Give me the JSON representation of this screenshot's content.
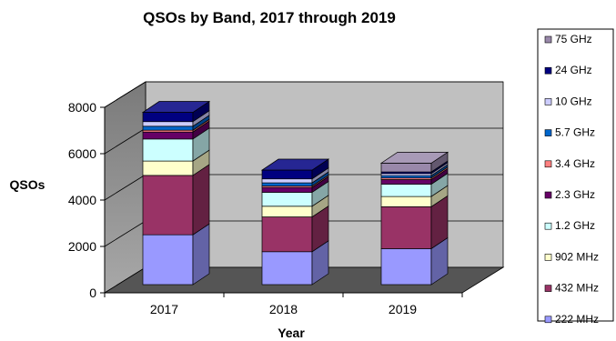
{
  "chart_data": {
    "type": "bar",
    "stacked": true,
    "three_d": true,
    "title": "QSOs by Band, 2017 through 2019",
    "xlabel": "Year",
    "ylabel": "QSOs",
    "ylim": [
      0,
      8000
    ],
    "yticks": [
      "0",
      "2000",
      "4000",
      "6000",
      "8000"
    ],
    "categories": [
      "2017",
      "2018",
      "2019"
    ],
    "grid": true,
    "legend_position": "right",
    "series": [
      {
        "name": "222 MHz",
        "color": "#9999ff",
        "values": [
          2150,
          1420,
          1550
        ]
      },
      {
        "name": "432 MHz",
        "color": "#993366",
        "values": [
          2560,
          1500,
          1810
        ]
      },
      {
        "name": "902 MHz",
        "color": "#ffffcc",
        "values": [
          620,
          460,
          440
        ]
      },
      {
        "name": "1.2 GHz",
        "color": "#ccffff",
        "values": [
          950,
          600,
          530
        ]
      },
      {
        "name": "2.3 GHz",
        "color": "#660066",
        "values": [
          300,
          210,
          200
        ]
      },
      {
        "name": "3.4 GHz",
        "color": "#ff8080",
        "values": [
          80,
          60,
          70
        ]
      },
      {
        "name": "5.7 GHz",
        "color": "#0066cc",
        "values": [
          170,
          140,
          100
        ]
      },
      {
        "name": "10 GHz",
        "color": "#ccccff",
        "values": [
          200,
          170,
          90
        ]
      },
      {
        "name": "24 GHz",
        "color": "#000080",
        "values": [
          400,
          380,
          70
        ]
      },
      {
        "name": "75 GHz",
        "color": "#9988aa",
        "values": [
          0,
          0,
          380
        ]
      }
    ]
  }
}
